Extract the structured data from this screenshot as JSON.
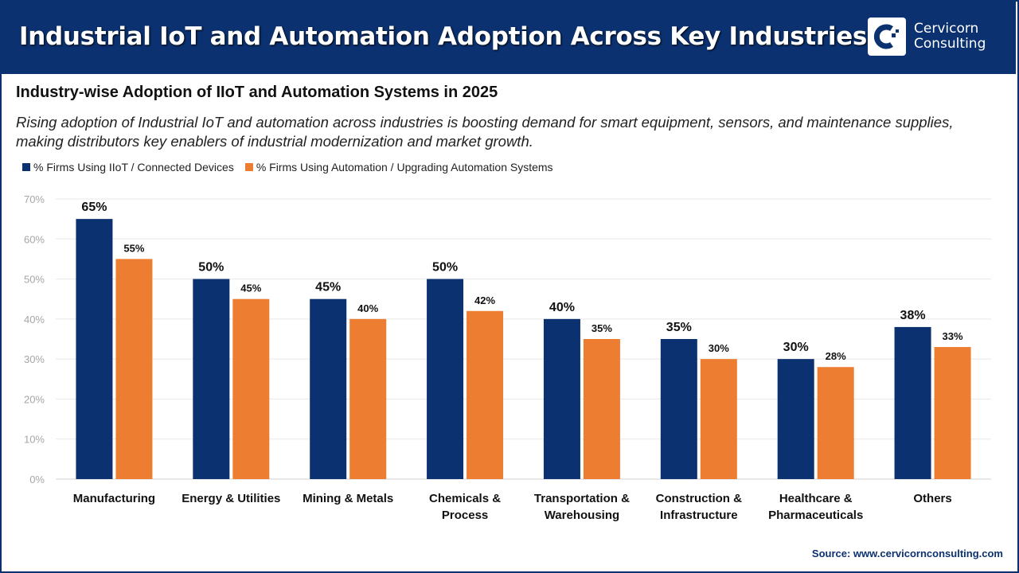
{
  "header": {
    "title": "Industrial IoT and Automation Adoption Across Key Industries",
    "logo_text": [
      "Cervicorn",
      "Consulting"
    ]
  },
  "subtitle": "Industry-wise Adoption of IIoT and Automation Systems in 2025",
  "description": [
    "Rising adoption of Industrial IoT and automation across industries is boosting demand for smart equipment, sensors, and maintenance supplies,",
    "making distributors key enablers of industrial modernization and market growth."
  ],
  "source": "Source: www.cervicornconsulting.com",
  "chart_data": {
    "type": "bar",
    "categories": [
      [
        "Manufacturing"
      ],
      [
        "Energy & Utilities"
      ],
      [
        "Mining & Metals"
      ],
      [
        "Chemicals &",
        "Process"
      ],
      [
        "Transportation &",
        "Warehousing"
      ],
      [
        "Construction &",
        "Infrastructure"
      ],
      [
        "Healthcare &",
        "Pharmaceuticals"
      ],
      [
        "Others"
      ]
    ],
    "series": [
      {
        "name": "% Firms Using IIoT / Connected Devices",
        "color": "#0b3170",
        "values": [
          65,
          50,
          45,
          50,
          40,
          35,
          30,
          38
        ]
      },
      {
        "name": "% Firms Using Automation / Upgrading Automation Systems",
        "color": "#ed7d31",
        "values": [
          55,
          45,
          40,
          42,
          35,
          30,
          28,
          33
        ]
      }
    ],
    "ylim": [
      0,
      70
    ],
    "yticks": [
      "0%",
      "10%",
      "20%",
      "30%",
      "40%",
      "50%",
      "60%",
      "70%"
    ],
    "grid": true,
    "legend": "top-left"
  }
}
